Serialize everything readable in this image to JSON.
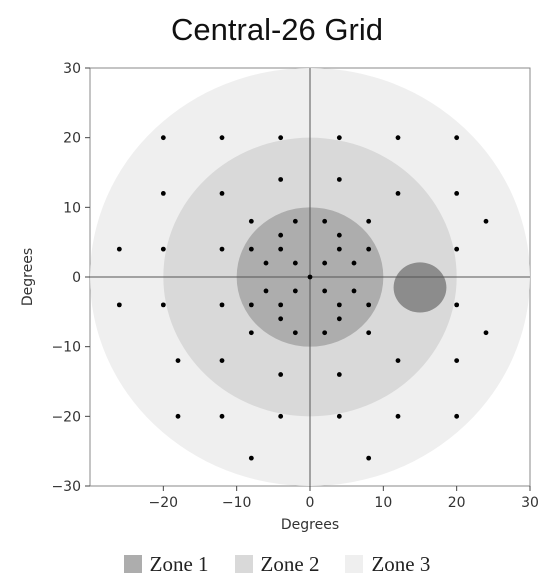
{
  "chart_data": {
    "type": "scatter",
    "title": "Central-26 Grid",
    "xlabel": "Degrees",
    "ylabel": "Degrees",
    "xlim": [
      -30,
      30
    ],
    "ylim": [
      -30,
      30
    ],
    "xticks": [
      -20,
      -10,
      0,
      10,
      20,
      30
    ],
    "yticks": [
      -30,
      -20,
      -10,
      0,
      10,
      20,
      30
    ],
    "grid": false,
    "zones": [
      {
        "name": "Zone 1",
        "radius_deg": 10,
        "color": "#adadad"
      },
      {
        "name": "Zone 2",
        "radius_deg": 20,
        "color": "#d9d9d9"
      },
      {
        "name": "Zone 3",
        "radius_deg": 30,
        "color": "#efefef"
      }
    ],
    "blind_spot": {
      "x": 15,
      "y": -1.5,
      "radius_deg": 3.6,
      "color": "#8c8c8c"
    },
    "points": {
      "x": [
        -20,
        -12,
        -4,
        4,
        12,
        20,
        -20,
        -12,
        -4,
        4,
        12,
        20,
        -8,
        -2,
        2,
        8,
        -26,
        -20,
        -12,
        -8,
        -4,
        4,
        8,
        20,
        24,
        -6,
        -2,
        2,
        6,
        0,
        -26,
        -20,
        -12,
        -8,
        -4,
        4,
        8,
        20,
        24,
        -6,
        -2,
        2,
        6,
        -8,
        -2,
        2,
        8,
        -18,
        -12,
        -4,
        4,
        12,
        20,
        -18,
        -12,
        -4,
        4,
        12,
        20,
        -8,
        8,
        -4,
        4,
        -4,
        4
      ],
      "y": [
        20,
        20,
        20,
        20,
        20,
        20,
        12,
        12,
        14,
        14,
        12,
        12,
        8,
        8,
        8,
        8,
        4,
        4,
        4,
        4,
        4,
        4,
        4,
        4,
        8,
        2,
        2,
        2,
        2,
        0,
        -4,
        -4,
        -4,
        -4,
        -4,
        -4,
        -4,
        -4,
        -8,
        -2,
        -2,
        -2,
        -2,
        -8,
        -8,
        -8,
        -8,
        -12,
        -12,
        -14,
        -14,
        -12,
        -12,
        -20,
        -20,
        -20,
        -20,
        -20,
        -20,
        -26,
        -26,
        6,
        6,
        -6,
        -6
      ]
    },
    "legend": [
      "Zone 1",
      "Zone 2",
      "Zone 3"
    ],
    "legend_position": "bottom",
    "point_color": "#000000",
    "axis_line_color": "#555555"
  }
}
